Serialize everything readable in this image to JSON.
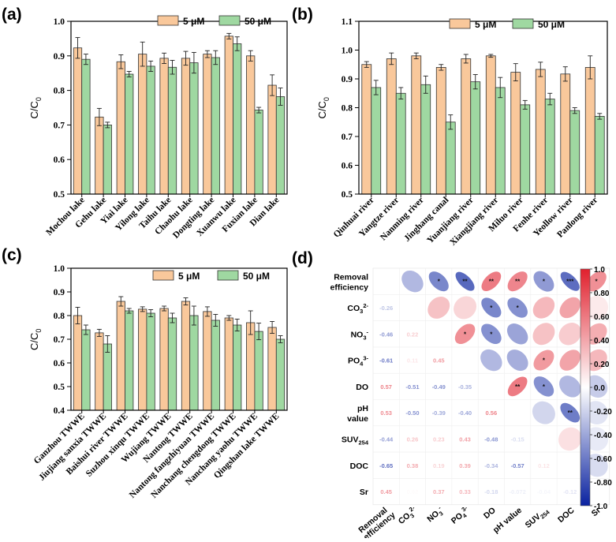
{
  "colors": {
    "c5": "#f9c89b",
    "c50": "#9fd8a1",
    "edge": "#333333",
    "neg": "#0a22a0",
    "pos": "#e0202d"
  },
  "chart_data": [
    {
      "panel": "(a)",
      "type": "bar",
      "ylabel": "C/C0",
      "ylim": [
        0.5,
        1.0
      ],
      "yticks": [
        "0.5",
        "0.6",
        "0.7",
        "0.8",
        "0.9",
        "1.0"
      ],
      "categories": [
        "Mochou lake",
        "Gehu lake",
        "Yiai lake",
        "Yilong lake",
        "Taihu lake",
        "Chaohu lake",
        "Dongting lake",
        "Xuanwu lake",
        "Fuxian lake",
        "Dian lake"
      ],
      "series": [
        {
          "name": "5 μM",
          "values": [
            0.923,
            0.723,
            0.883,
            0.905,
            0.893,
            0.893,
            0.905,
            0.957,
            0.9,
            0.815
          ],
          "errors": [
            0.03,
            0.025,
            0.02,
            0.035,
            0.015,
            0.02,
            0.01,
            0.008,
            0.015,
            0.03
          ]
        },
        {
          "name": "50 μM",
          "values": [
            0.89,
            0.7,
            0.847,
            0.87,
            0.867,
            0.88,
            0.895,
            0.935,
            0.743,
            0.782
          ],
          "errors": [
            0.015,
            0.008,
            0.008,
            0.015,
            0.02,
            0.03,
            0.02,
            0.02,
            0.008,
            0.025
          ]
        }
      ]
    },
    {
      "panel": "(b)",
      "type": "bar",
      "ylabel": "C/C0",
      "ylim": [
        0.5,
        1.1
      ],
      "yticks": [
        "0.5",
        "0.6",
        "0.7",
        "0.8",
        "0.9",
        "1.0",
        "1.1"
      ],
      "categories": [
        "Qinhuai river",
        "Yangtze river",
        "Nanming river",
        "Jinghang canal",
        "Yuanjiang river",
        "Xiangjiang river",
        "Miluo river",
        "Fenhe river",
        "Yeollow river",
        "Panlong river"
      ],
      "series": [
        {
          "name": "5 μM",
          "values": [
            0.95,
            0.97,
            0.98,
            0.94,
            0.97,
            0.98,
            0.923,
            0.933,
            0.917,
            0.94
          ],
          "errors": [
            0.01,
            0.02,
            0.01,
            0.01,
            0.015,
            0.005,
            0.03,
            0.025,
            0.025,
            0.04
          ]
        },
        {
          "name": "50 μM",
          "values": [
            0.87,
            0.85,
            0.88,
            0.75,
            0.89,
            0.87,
            0.81,
            0.83,
            0.79,
            0.77
          ],
          "errors": [
            0.025,
            0.02,
            0.03,
            0.025,
            0.025,
            0.035,
            0.015,
            0.02,
            0.01,
            0.01
          ]
        }
      ]
    },
    {
      "panel": "(c)",
      "type": "bar",
      "ylabel": "C/C0",
      "ylim": [
        0.4,
        1.0
      ],
      "yticks": [
        "0.4",
        "0.5",
        "0.6",
        "0.7",
        "0.8",
        "0.9",
        "1.0"
      ],
      "categories": [
        "Ganzhou TWWE",
        "Jiujiang sanxia TWWE",
        "Baishui river TWWE",
        "Suzhou xinqu TWWE",
        "Wujiang TWWE",
        "Nantong TWWE",
        "Nantong fangzhiyuan TWWE",
        "Nanchang chengdong TWWE",
        "Nanchang yaohu TWWE",
        "Qingshan lake TWWE"
      ],
      "series": [
        {
          "name": "5 μM",
          "values": [
            0.8,
            0.727,
            0.86,
            0.827,
            0.83,
            0.86,
            0.817,
            0.79,
            0.77,
            0.75
          ],
          "errors": [
            0.035,
            0.015,
            0.02,
            0.01,
            0.01,
            0.015,
            0.02,
            0.01,
            0.05,
            0.025
          ]
        },
        {
          "name": "50 μM",
          "values": [
            0.74,
            0.68,
            0.82,
            0.81,
            0.79,
            0.8,
            0.78,
            0.76,
            0.733,
            0.7
          ],
          "errors": [
            0.02,
            0.035,
            0.01,
            0.015,
            0.02,
            0.04,
            0.025,
            0.025,
            0.035,
            0.015
          ]
        }
      ]
    },
    {
      "panel": "(d)",
      "type": "heatmap",
      "row_labels": [
        "Removal efficiency",
        "CO₃²⁻",
        "NO₃⁻",
        "PO₄³⁻",
        "DO",
        "pH value",
        "SUV₂₅₄",
        "DOC",
        "Sr"
      ],
      "col_labels": [
        "Removal efficiency",
        "CO₃²⁻",
        "NO₃⁻",
        "PO₄³⁻",
        "DO",
        "pH value",
        "SUV₂₅₄",
        "DOC",
        "Sr"
      ],
      "lower_values": [
        [
          1,
          -0.26,
          -0.46,
          -0.61,
          0.57,
          0.53,
          -0.44,
          -0.65,
          0.45
        ],
        [
          -0.26,
          1,
          0.22,
          0.11,
          -0.51,
          -0.5,
          0.26,
          0.38,
          0.02
        ],
        [
          -0.46,
          0.22,
          1,
          0.45,
          -0.49,
          -0.39,
          0.23,
          0.19,
          0.37
        ],
        [
          -0.61,
          0.11,
          0.45,
          1,
          -0.35,
          -0.4,
          0.43,
          0.39,
          0.33
        ],
        [
          0.57,
          -0.51,
          -0.49,
          -0.35,
          1,
          0.56,
          -0.48,
          -0.34,
          -0.18
        ],
        [
          0.53,
          -0.5,
          -0.39,
          -0.4,
          0.56,
          1,
          -0.15,
          -0.57,
          -0.072
        ],
        [
          -0.44,
          0.26,
          0.23,
          0.43,
          -0.48,
          -0.15,
          1,
          0.12,
          -0.04
        ],
        [
          -0.65,
          0.38,
          0.19,
          0.39,
          -0.34,
          -0.57,
          0.12,
          1,
          -0.12
        ],
        [
          0.45,
          0.02,
          0.37,
          0.33,
          -0.18,
          -0.072,
          -0.04,
          -0.12,
          1
        ]
      ],
      "lower_labels": [
        [
          null,
          null,
          null,
          null,
          null,
          null,
          null,
          null,
          null
        ],
        [
          "-0.26",
          null,
          null,
          null,
          null,
          null,
          null,
          null,
          null
        ],
        [
          "-0.46",
          "0.22",
          null,
          null,
          null,
          null,
          null,
          null,
          null
        ],
        [
          "-0.61",
          "0.11",
          "0.45",
          null,
          null,
          null,
          null,
          null,
          null
        ],
        [
          "0.57",
          "-0.51",
          "-0.49",
          "-0.35",
          null,
          null,
          null,
          null,
          null
        ],
        [
          "0.53",
          "-0.50",
          "-0.39",
          "-0.40",
          "0.56",
          null,
          null,
          null,
          null
        ],
        [
          "-0.44",
          "0.26",
          "0.23",
          "0.43",
          "-0.48",
          "-0.15",
          null,
          null,
          null
        ],
        [
          "-0.65",
          "0.38",
          "0.19",
          "0.39",
          "-0.34",
          "-0.57",
          "0.12",
          null,
          null
        ],
        [
          "0.45",
          "0.02",
          "0.37",
          "0.33",
          "-0.18",
          "-0.072",
          "-0.04",
          "-0.12",
          null
        ]
      ],
      "upper_values": [
        [
          null,
          -0.3,
          -0.55,
          -0.7,
          0.6,
          0.55,
          -0.45,
          -0.68,
          0.5
        ],
        [
          null,
          null,
          0.25,
          0.15,
          -0.55,
          -0.5,
          0.3,
          0.4,
          0.05
        ],
        [
          null,
          null,
          null,
          0.5,
          -0.5,
          -0.4,
          0.25,
          0.2,
          0.35
        ],
        [
          null,
          null,
          null,
          null,
          -0.3,
          -0.35,
          0.45,
          0.4,
          0.3
        ],
        [
          null,
          null,
          null,
          null,
          null,
          0.6,
          -0.5,
          -0.3,
          -0.2
        ],
        [
          null,
          null,
          null,
          null,
          null,
          null,
          -0.15,
          -0.6,
          -0.08
        ],
        [
          null,
          null,
          null,
          null,
          null,
          null,
          null,
          0.1,
          -0.05
        ],
        [
          null,
          null,
          null,
          null,
          null,
          null,
          null,
          null,
          -0.12
        ],
        [
          null,
          null,
          null,
          null,
          null,
          null,
          null,
          null,
          null
        ]
      ],
      "stars": [
        [
          null,
          null,
          "*",
          "**",
          "**",
          "**",
          "*",
          "***",
          "*"
        ],
        [
          null,
          null,
          null,
          null,
          "*",
          "*",
          null,
          null,
          null
        ],
        [
          null,
          null,
          null,
          "*",
          "*",
          null,
          null,
          null,
          null
        ],
        [
          null,
          null,
          null,
          null,
          null,
          null,
          "*",
          null,
          null
        ],
        [
          null,
          null,
          null,
          null,
          null,
          "**",
          "*",
          null,
          null
        ],
        [
          null,
          null,
          null,
          null,
          null,
          null,
          null,
          "**",
          null
        ],
        [
          null,
          null,
          null,
          null,
          null,
          null,
          null,
          null,
          null
        ],
        [
          null,
          null,
          null,
          null,
          null,
          null,
          null,
          null,
          null
        ],
        [
          null,
          null,
          null,
          null,
          null,
          null,
          null,
          null,
          null
        ]
      ],
      "colorbar_ticks": [
        "1.0",
        "0.80",
        "0.60",
        "0.40",
        "0.20",
        "0.0",
        "-0.20",
        "-0.40",
        "-0.60",
        "-0.80",
        "-1.0"
      ]
    }
  ]
}
